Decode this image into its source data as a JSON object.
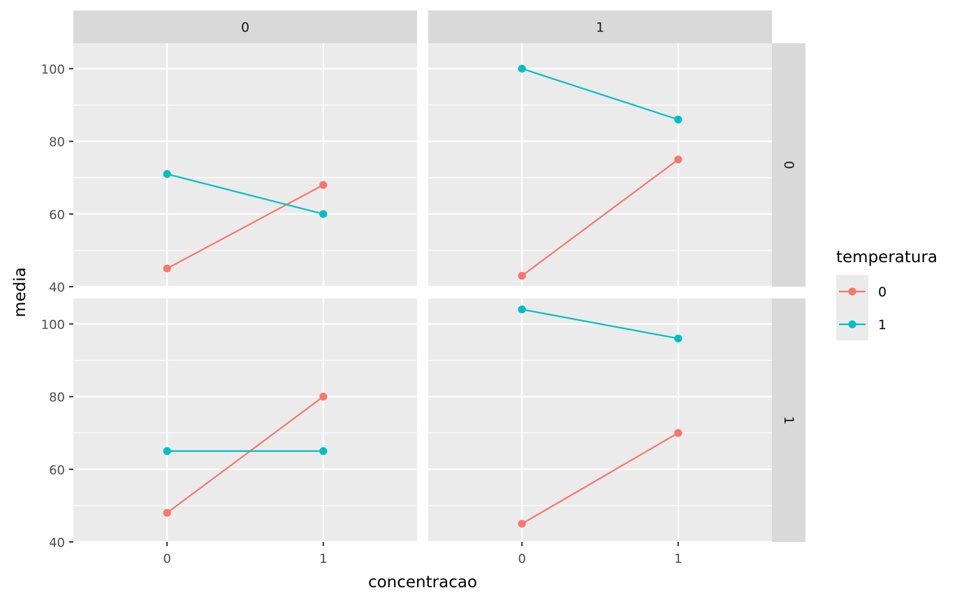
{
  "chart_data": {
    "type": "line",
    "xlabel": "concentracao",
    "ylabel": "media",
    "x_ticks": [
      "0",
      "1"
    ],
    "y_ticks": [
      "40",
      "60",
      "80",
      "100"
    ],
    "ylim": [
      40,
      107
    ],
    "xlim": [
      -0.6,
      1.6
    ],
    "grid": true,
    "legend": {
      "title": "temperatura",
      "position": "right",
      "entries": [
        {
          "label": "0",
          "color": "#F8766D"
        },
        {
          "label": "1",
          "color": "#00BFC4"
        }
      ]
    },
    "facet_cols": [
      "0",
      "1"
    ],
    "facet_rows": [
      "0",
      "1"
    ],
    "panels": [
      {
        "col": "0",
        "row": "0",
        "series": [
          {
            "name": "0",
            "x": [
              0,
              1
            ],
            "y": [
              45,
              68
            ]
          },
          {
            "name": "1",
            "x": [
              0,
              1
            ],
            "y": [
              71,
              60
            ]
          }
        ]
      },
      {
        "col": "1",
        "row": "0",
        "series": [
          {
            "name": "0",
            "x": [
              0,
              1
            ],
            "y": [
              43,
              75
            ]
          },
          {
            "name": "1",
            "x": [
              0,
              1
            ],
            "y": [
              100,
              86
            ]
          }
        ]
      },
      {
        "col": "0",
        "row": "1",
        "series": [
          {
            "name": "0",
            "x": [
              0,
              1
            ],
            "y": [
              48,
              80
            ]
          },
          {
            "name": "1",
            "x": [
              0,
              1
            ],
            "y": [
              65,
              65
            ]
          }
        ]
      },
      {
        "col": "1",
        "row": "1",
        "series": [
          {
            "name": "0",
            "x": [
              0,
              1
            ],
            "y": [
              45,
              70
            ]
          },
          {
            "name": "1",
            "x": [
              0,
              1
            ],
            "y": [
              104,
              96
            ]
          }
        ]
      }
    ]
  }
}
